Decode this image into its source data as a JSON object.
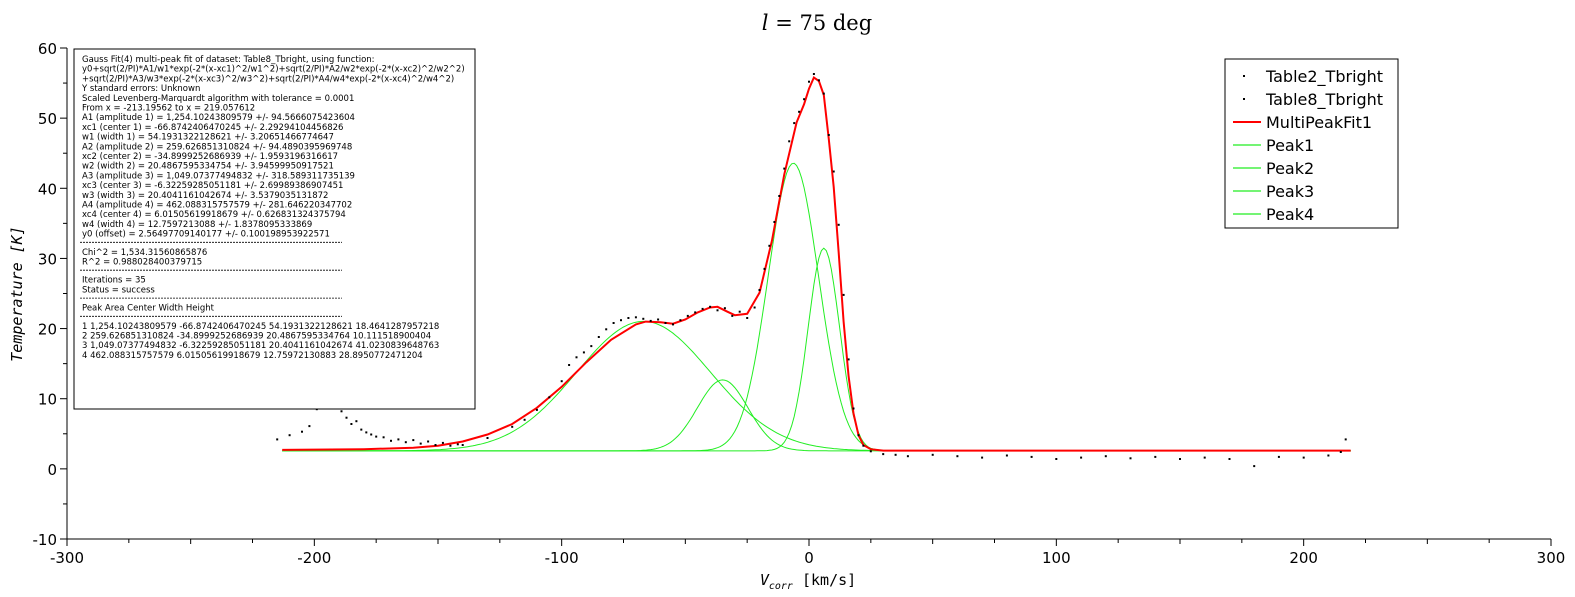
{
  "chart_data": {
    "type": "line",
    "title": "l = 75 deg",
    "title_var": "l",
    "title_rest": " = 75 deg",
    "xlabel": "V",
    "xlabel_sub": "corr",
    "xlabel_unit": " [km/s]",
    "ylabel": "Temperature [K]",
    "xlim": [
      -300,
      300
    ],
    "ylim": [
      -10,
      60
    ],
    "xticks": [
      "-300",
      "-200",
      "-100",
      "0",
      "100",
      "200",
      "300"
    ],
    "yticks": [
      "-10",
      "0",
      "10",
      "20",
      "30",
      "40",
      "50",
      "60"
    ],
    "grid": false,
    "legend_position": "top-right",
    "colors": {
      "data": "#000000",
      "fit": "#ff0000",
      "peaks": "#22ee22",
      "background": "#ffffff"
    },
    "series": [
      {
        "name": "Table2_Tbright",
        "type": "scatter",
        "color": "#000000",
        "x": [
          -215,
          -210,
          -205,
          -202,
          -199,
          -197,
          -195,
          -193,
          -191,
          -189,
          -187,
          -185,
          -183,
          -181,
          -179,
          -177,
          -175,
          -172,
          -169,
          -166,
          -163,
          -160,
          -157,
          -154,
          -151,
          -148,
          -145,
          -142
        ],
        "y": [
          4.2,
          4.8,
          5.3,
          6.1,
          8.5,
          15.8,
          20.3,
          12.1,
          9.4,
          8.2,
          7.3,
          6.4,
          6.8,
          5.6,
          5.2,
          4.9,
          4.6,
          4.5,
          4.0,
          4.2,
          3.8,
          4.1,
          3.6,
          3.9,
          3.4,
          3.7,
          3.3,
          3.5
        ]
      },
      {
        "name": "Table8_Tbright",
        "type": "scatter",
        "color": "#000000",
        "x": [
          -140,
          -130,
          -120,
          -115,
          -110,
          -105,
          -100,
          -97,
          -94,
          -91,
          -88,
          -85,
          -82,
          -79,
          -76,
          -73,
          -70,
          -67,
          -64,
          -61,
          -58,
          -55,
          -52,
          -49,
          -46,
          -43,
          -40,
          -37,
          -34,
          -31,
          -28,
          -25,
          -22,
          -20,
          -18,
          -16,
          -14,
          -12,
          -10,
          -8,
          -6,
          -4,
          -2,
          0,
          2,
          4,
          6,
          8,
          10,
          12,
          14,
          16,
          18,
          20,
          22,
          25,
          30,
          35,
          40,
          50,
          60,
          70,
          80,
          90,
          100,
          110,
          120,
          130,
          140,
          150,
          160,
          170,
          180,
          190,
          200,
          210,
          215,
          217
        ],
        "y": [
          3.4,
          4.4,
          6.0,
          7.0,
          8.4,
          10.2,
          12.5,
          14.8,
          15.9,
          16.6,
          17.5,
          18.8,
          19.9,
          20.8,
          21.2,
          21.5,
          21.6,
          21.4,
          21.1,
          21.3,
          20.8,
          20.6,
          21.2,
          21.8,
          22.3,
          22.8,
          23.1,
          22.6,
          22.9,
          21.8,
          22.4,
          21.5,
          23.0,
          25.5,
          28.5,
          31.8,
          35.2,
          38.9,
          42.8,
          46.7,
          49.3,
          50.9,
          52.7,
          55.2,
          56.3,
          55.4,
          53.5,
          47.6,
          42.4,
          34.8,
          24.8,
          15.6,
          8.6,
          4.8,
          3.3,
          2.5,
          2.1,
          2.0,
          1.8,
          2.0,
          1.8,
          1.6,
          1.9,
          1.7,
          1.4,
          1.6,
          1.8,
          1.5,
          1.7,
          1.4,
          1.6,
          1.4,
          0.4,
          1.7,
          1.6,
          1.9,
          2.4,
          4.2
        ]
      },
      {
        "name": "MultiPeakFit1",
        "type": "line",
        "color": "#ff0000",
        "x": [
          -213,
          -180,
          -160,
          -150,
          -140,
          -130,
          -120,
          -110,
          -100,
          -90,
          -80,
          -70,
          -66,
          -60,
          -55,
          -50,
          -45,
          -40,
          -37,
          -33,
          -30,
          -25,
          -20,
          -15,
          -10,
          -5,
          -2,
          0,
          2,
          4,
          6,
          8,
          10,
          12,
          14,
          16,
          18,
          20,
          22,
          25,
          30,
          40,
          60,
          100,
          219
        ],
        "y": [
          2.7,
          2.8,
          3.0,
          3.3,
          3.9,
          4.9,
          6.4,
          8.7,
          11.7,
          15.2,
          18.4,
          20.6,
          21.0,
          20.9,
          20.7,
          21.3,
          22.3,
          23.0,
          23.1,
          22.4,
          21.9,
          22.1,
          25.1,
          32.5,
          42.0,
          49.4,
          52.0,
          54.2,
          55.8,
          55.3,
          53.3,
          47.0,
          40.2,
          30.8,
          21.0,
          13.2,
          7.9,
          4.8,
          3.4,
          2.8,
          2.6,
          2.6,
          2.6,
          2.6,
          2.6
        ]
      },
      {
        "name": "Peak1",
        "type": "line",
        "color": "#22ee22",
        "center": -66.874,
        "width": 54.193,
        "height": 18.464,
        "x_range": [
          -213,
          219
        ]
      },
      {
        "name": "Peak2",
        "type": "line",
        "color": "#22ee22",
        "center": -34.9,
        "width": 20.487,
        "height": 10.112,
        "x_range": [
          -213,
          219
        ]
      },
      {
        "name": "Peak3",
        "type": "line",
        "color": "#22ee22",
        "center": -6.323,
        "width": 20.404,
        "height": 41.023,
        "x_range": [
          -213,
          219
        ]
      },
      {
        "name": "Peak4",
        "type": "line",
        "color": "#22ee22",
        "center": 6.015,
        "width": 12.76,
        "height": 28.896,
        "x_range": [
          -213,
          219
        ]
      }
    ],
    "baseline_offset": 2.565,
    "annotation": [
      "Gauss Fit(4) multi-peak fit of dataset: Table8_Tbright, using function:",
      "y0+sqrt(2/PI)*A1/w1*exp(-2*(x-xc1)^2/w1^2)+sqrt(2/PI)*A2/w2*exp(-2*(x-xc2)^2/w2^2)",
      "+sqrt(2/PI)*A3/w3*exp(-2*(x-xc3)^2/w3^2)+sqrt(2/PI)*A4/w4*exp(-2*(x-xc4)^2/w4^2)",
      "Y standard errors: Unknown",
      "Scaled Levenberg-Marquardt algorithm with tolerance = 0.0001",
      "From x = -213.19562 to x = 219.057612",
      "A1 (amplitude 1) = 1,254.10243809579 +/- 94.5666075423604",
      "xc1 (center 1) = -66.8742406470245 +/- 2.29294104456826",
      "w1 (width 1) = 54.1931322128621 +/- 3.20651466774647",
      "A2 (amplitude 2) = 259.626851310824 +/- 94.4890395969748",
      "xc2 (center 2) = -34.8999252686939 +/- 1.9593196316617",
      "w2 (width 2) = 20.4867595334754 +/- 3.94599950917521",
      "A3 (amplitude 3) = 1,049.07377494832 +/- 318.589311735139",
      "xc3 (center 3) = -6.32259285051181 +/- 2.69989386907451",
      "w3 (width 3) = 20.4041161042674 +/- 3.5379035131872",
      "A4 (amplitude 4) = 462.088315757579 +/- 281.646220347702",
      "xc4 (center 4) = 6.01505619918679 +/- 0.626831324375794",
      "w4 (width 4) = 12.7597213088 +/- 1.8378095333869",
      "y0 (offset) = 2.56497709140177 +/- 0.100198953922571",
      "---",
      "Chi^2 = 1,534.31560865876",
      "R^2 = 0.988028400379715",
      "---",
      "Iterations = 35",
      "Status = success",
      "---",
      "Peak Area Center Width Height",
      "---",
      "1 1,254.10243809579 -66.8742406470245 54.1931322128621 18.4641287957218",
      "2 259.626851310824 -34.8999252686939 20.4867595334764 10.111518900404",
      "3 1,049.07377494832 -6.32259285051181 20.4041161042674 41.0230839648763",
      "4 462.088315757579 6.01505619918679 12.75972130883 28.8950772471204"
    ]
  }
}
